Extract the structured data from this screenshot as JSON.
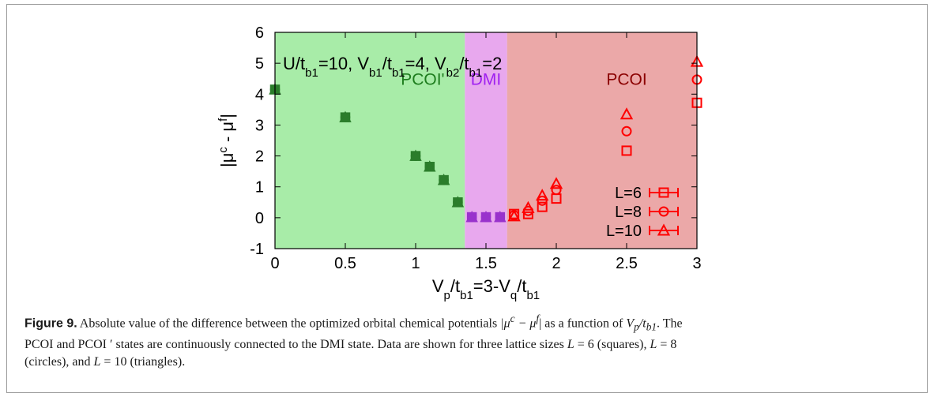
{
  "chart_data": {
    "type": "scatter",
    "xlabel": "V_p/t_b1=3-V_q/t_b1",
    "ylabel": "|μ^c - μ^f|",
    "xlim": [
      0,
      3
    ],
    "ylim": [
      -1,
      6
    ],
    "xticks": [
      "0",
      "0.5",
      "1",
      "1.5",
      "2",
      "2.5",
      "3"
    ],
    "yticks": [
      "-1",
      "0",
      "1",
      "2",
      "3",
      "4",
      "5",
      "6"
    ],
    "grid": false,
    "legend_position": "bottom-right",
    "annotation": "U/t_b1=10, V_b1/t_b1=4, V_b2/t_b1=2",
    "regions": [
      {
        "label": "PCOI'",
        "x_start": 0,
        "x_end": 1.35,
        "color": "#a8eca8",
        "label_color": "#1e7d1e"
      },
      {
        "label": "DMI",
        "x_start": 1.35,
        "x_end": 1.65,
        "color": "#e8a8ee",
        "label_color": "#a020f0"
      },
      {
        "label": "PCOI",
        "x_start": 1.65,
        "x_end": 3,
        "color": "#eba8a8",
        "label_color": "#8b0000"
      }
    ],
    "series": [
      {
        "name": "L=6",
        "marker": "square",
        "x": [
          0,
          0.5,
          1.0,
          1.1,
          1.2,
          1.3,
          1.4,
          1.5,
          1.6,
          1.7,
          1.8,
          1.9,
          2.0,
          2.5,
          3.0
        ],
        "y": [
          4.15,
          3.25,
          2.0,
          1.65,
          1.22,
          0.5,
          0.02,
          0.02,
          0.02,
          0.12,
          0.12,
          0.35,
          0.62,
          2.17,
          3.72
        ]
      },
      {
        "name": "L=8",
        "marker": "circle",
        "x": [
          0,
          0.5,
          1.0,
          1.1,
          1.2,
          1.3,
          1.4,
          1.5,
          1.6,
          1.7,
          1.8,
          1.9,
          2.0,
          2.5,
          3.0
        ],
        "y": [
          4.15,
          3.25,
          2.0,
          1.65,
          1.22,
          0.5,
          0.02,
          0.02,
          0.02,
          0.08,
          0.22,
          0.55,
          0.9,
          2.8,
          4.47
        ]
      },
      {
        "name": "L=10",
        "marker": "triangle",
        "x": [
          0,
          0.5,
          1.0,
          1.1,
          1.2,
          1.3,
          1.4,
          1.5,
          1.6,
          1.7,
          1.8,
          1.9,
          2.0,
          2.5,
          3.0
        ],
        "y": [
          4.15,
          3.25,
          2.0,
          1.65,
          1.22,
          0.5,
          0.02,
          0.02,
          0.02,
          0.05,
          0.32,
          0.72,
          1.1,
          3.35,
          5.05
        ]
      }
    ]
  },
  "caption": {
    "label": "Figure 9.",
    "line1_a": " Absolute value of the difference between the optimized orbital chemical potentials ",
    "line1_b": "|μ",
    "line1_b_sup": "c",
    "line1_c": " − μ",
    "line1_c_sup": "f",
    "line1_d": "| as a function of ",
    "line1_e": "V",
    "line1_e_sub": "p",
    "line1_f": "/t",
    "line1_f_sub": "b1",
    "line1_g": ". The",
    "line2_a": "PCOI and PCOI",
    "line2_prime": " ′",
    "line2_b": " states are continuously connected to the DMI state. Data are shown for three lattice sizes ",
    "line2_c": "L",
    "line2_d": " = 6 (squares), ",
    "line2_e": "L",
    "line2_f": " = 8",
    "line3_a": "(circles), and ",
    "line3_b": "L",
    "line3_c": " = 10 (triangles)."
  }
}
